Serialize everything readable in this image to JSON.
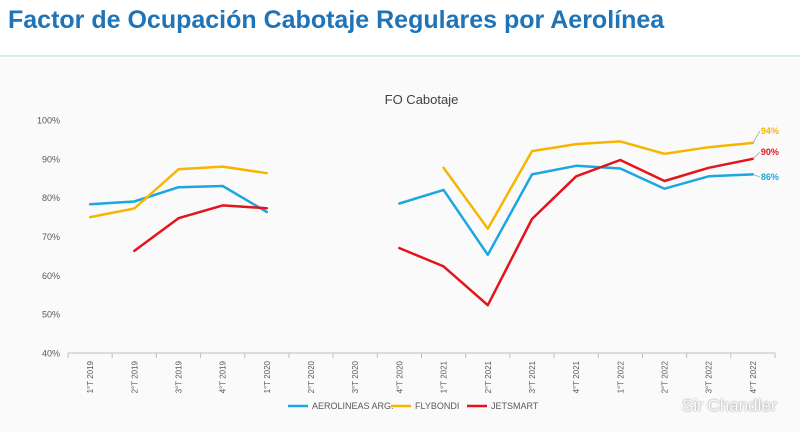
{
  "page": {
    "title": "Factor de Ocupación Cabotaje Regulares por Aerolínea",
    "watermark": "Sir Chandler"
  },
  "colors": {
    "title": "#1f73b7",
    "aerolineas": "#1ca7e0",
    "flybondi": "#f7b500",
    "jetsmart": "#e3141b"
  },
  "chart_data": {
    "type": "line",
    "title": "FO Cabotaje",
    "xlabel": "",
    "ylabel": "",
    "ylim": [
      0.4,
      1.0
    ],
    "yticks": [
      "40%",
      "50%",
      "60%",
      "70%",
      "80%",
      "90%",
      "100%"
    ],
    "categories": [
      "1°T 2019",
      "2°T 2019",
      "3°T 2019",
      "4°T 2019",
      "1°T 2020",
      "2°T 2020",
      "3°T 2020",
      "4°T 2020",
      "1°T 2021",
      "2°T 2021",
      "3°T 2021",
      "4°T 2021",
      "1°T 2022",
      "2°T 2022",
      "3°T 2022",
      "4°T 2022"
    ],
    "grid": false,
    "legend_position": "bottom",
    "series": [
      {
        "name": "AEROLINEAS ARG.",
        "color": "#1ca7e0",
        "values": [
          0.783,
          0.79,
          0.827,
          0.83,
          0.763,
          null,
          null,
          0.785,
          0.82,
          0.653,
          0.86,
          0.882,
          0.875,
          0.823,
          0.855,
          0.86
        ],
        "end_label": "86%"
      },
      {
        "name": "FLYBONDI",
        "color": "#f7b500",
        "values": [
          0.75,
          0.772,
          0.873,
          0.88,
          0.863,
          null,
          null,
          null,
          0.877,
          0.72,
          0.92,
          0.938,
          0.945,
          0.913,
          0.93,
          0.941
        ],
        "end_label": "94%"
      },
      {
        "name": "JETSMART",
        "color": "#e3141b",
        "values": [
          null,
          0.663,
          0.747,
          0.78,
          0.773,
          null,
          null,
          0.67,
          0.623,
          0.523,
          0.745,
          0.855,
          0.897,
          0.843,
          0.877,
          0.9
        ],
        "end_label": "90%"
      }
    ]
  }
}
